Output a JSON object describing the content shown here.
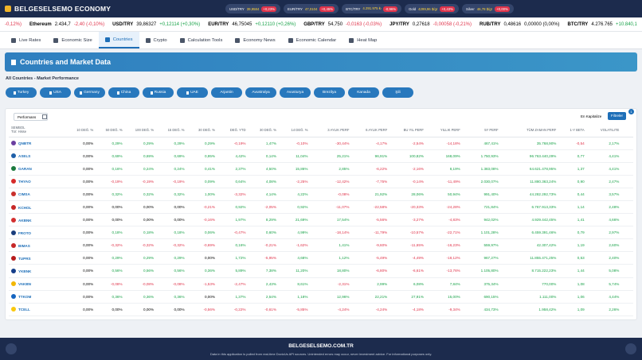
{
  "header": {
    "logo": "BELGESELSEMO ECONOMY",
    "pills": [
      {
        "name": "USD/TRY",
        "value": "39,9584",
        "change": "+0,23%"
      },
      {
        "name": "EUR/TRY",
        "value": "47,0104",
        "change": "+0,45%"
      },
      {
        "name": "BTC/TRY",
        "value": "4.291.975 ₺",
        "change": "-0,96%"
      },
      {
        "name": "Gold",
        "value": "4299,96 $/gr",
        "change": "+0,43%"
      },
      {
        "name": "Silver",
        "value": "46,78 $/gr",
        "change": "+0,00%"
      }
    ]
  },
  "ticker": [
    {
      "change": "-0,12%)"
    },
    {
      "name": "Ethereum",
      "value": "2.434,7",
      "change": "-2,40 (-0,10%)"
    },
    {
      "name": "USD/TRY",
      "value": "39,86327",
      "change": "+0,12114 (+0,30%)"
    },
    {
      "name": "EUR/TRY",
      "value": "46,75045",
      "change": "+0,12110 (+0,26%)"
    },
    {
      "name": "GBP/TRY",
      "value": "54,750",
      "change": "-0,0163 (-0,03%)"
    },
    {
      "name": "JPY/TRY",
      "value": "0,27618",
      "change": "-0,00058 (-0,21%)"
    },
    {
      "name": "RUB/TRY",
      "value": "0,48616",
      "change": "0,00000 (0,00%)"
    },
    {
      "name": "BTC/TRY",
      "value": "4.276.765",
      "change": "+10.840,1"
    }
  ],
  "nav": [
    "Live Rates",
    "Economic Size",
    "Countries",
    "Crypto",
    "Calculation Tools",
    "Economy News",
    "Economic Calendar",
    "Heat Map"
  ],
  "banner_title": "Countries and Market Data",
  "section_title": "All Countries - Market Performance",
  "countries": [
    "Turkey",
    "USA",
    "Germany",
    "China",
    "Russia",
    "UAE",
    "Arjantin",
    "Avustralya",
    "Avusturya",
    "Brezilya",
    "Kanada",
    "Şili"
  ],
  "toolbar": {
    "performance": "Performans",
    "sort": "En Kapitalize",
    "filters": "Filtreler",
    "badge": "1"
  },
  "table": {
    "symbol_header": "SEMBOL",
    "symbol_sub": "Tür: Hisse",
    "columns": [
      "10 DEĞ. %",
      "50 DEĞ. %",
      "100 DEĞ. %",
      "15 DEĞ. %",
      "30 DEĞ. %",
      "DEĞ. YTD",
      "30 DEĞ. %",
      "14 DEĞ. %",
      "3 AYLIK PERF",
      "6 AYLIK PERF",
      "BU YIL PERF",
      "YILLIK PERF",
      "5Y PERF",
      "TÜM ZAMAN PERF",
      "1-Y BETA",
      "VOLATILITE"
    ],
    "rows": [
      {
        "symbol": "QNBTR",
        "values": [
          "0,00%",
          "0,29%",
          "0,29%",
          "0,29%",
          "0,29%",
          "-0,19%",
          "1,47%",
          "-0,10%",
          "-30,44%",
          "-4,17%",
          "-2,54%",
          "-14,18%",
          "467,41%",
          "35.768,90%",
          "-0,54",
          "2,17%"
        ]
      },
      {
        "symbol": "ASELS",
        "values": [
          "0,00%",
          "0,69%",
          "0,69%",
          "0,69%",
          "0,95%",
          "4,42%",
          "0,14%",
          "11,04%",
          "25,21%",
          "96,91%",
          "100,82%",
          "168,09%",
          "1.750,93%",
          "96.763.440,29%",
          "0,77",
          "4,41%"
        ]
      },
      {
        "symbol": "GARAN",
        "values": [
          "0,00%",
          "0,16%",
          "0,24%",
          "0,24%",
          "0,41%",
          "2,37%",
          "4,50%",
          "15,86%",
          "2,85%",
          "-6,22%",
          "-2,16%",
          "8,19%",
          "1.383,08%",
          "64.621.478,95%",
          "1,37",
          "4,41%"
        ]
      },
      {
        "symbol": "THYAO",
        "values": [
          "0,00%",
          "-0,19%",
          "-0,19%",
          "-0,19%",
          "0,09%",
          "0,64%",
          "4,08%",
          "-2,25%",
          "-12,42%",
          "-7,75%",
          "-0,14%",
          "-11,49%",
          "2.030,07%",
          "11.880.363,24%",
          "0,90",
          "2,47%"
        ]
      },
      {
        "symbol": "CIMSA",
        "values": [
          "0,00%",
          "0,32%",
          "0,32%",
          "0,32%",
          "1,00%",
          "-3,32%",
          "4,14%",
          "4,22%",
          "-0,08%",
          "21,92%",
          "28,06%",
          "50,94%",
          "991,40%",
          "44.282.292,73%",
          "0,44",
          "3,57%"
        ]
      },
      {
        "symbol": "KCHOL",
        "values": [
          "0,00%",
          "0,00%",
          "0,00%",
          "0,00%",
          "-0,21%",
          "0,92%",
          "-2,05%",
          "0,92%",
          "-11,07%",
          "-22,58%",
          "-20,33%",
          "-24,28%",
          "721,84%",
          "6.767.913,33%",
          "1,14",
          "2,48%"
        ]
      },
      {
        "symbol": "AKBNK",
        "values": [
          "0,00%",
          "0,00%",
          "0,00%",
          "0,00%",
          "-0,16%",
          "1,97%",
          "8,29%",
          "21,69%",
          "17,54%",
          "-5,56%",
          "-3,27%",
          "-4,83%",
          "942,02%",
          "4.929.442,45%",
          "1,41",
          "4,66%"
        ]
      },
      {
        "symbol": "FROTO",
        "values": [
          "0,00%",
          "0,18%",
          "0,18%",
          "0,18%",
          "0,06%",
          "-0,47%",
          "0,60%",
          "4,99%",
          "-18,14%",
          "-11,79%",
          "-10,57%",
          "-22,71%",
          "1.101,28%",
          "6.459.391,46%",
          "0,79",
          "2,97%"
        ]
      },
      {
        "symbol": "BIMAS",
        "values": [
          "0,00%",
          "-0,32%",
          "-0,32%",
          "-0,32%",
          "-0,69%",
          "0,16%",
          "-0,21%",
          "-1,62%",
          "1,41%",
          "-9,60%",
          "-11,65%",
          "-16,23%",
          "559,97%",
          "42.307,42%",
          "1,19",
          "2,60%"
        ]
      },
      {
        "symbol": "TUPRS",
        "values": [
          "0,00%",
          "0,29%",
          "0,29%",
          "0,29%",
          "0,00%",
          "1,72%",
          "-5,95%",
          "4,68%",
          "1,12%",
          "-5,49%",
          "-4,49%",
          "-18,12%",
          "967,27%",
          "11.855.471,25%",
          "0,53",
          "2,40%"
        ]
      },
      {
        "symbol": "YKBNK",
        "values": [
          "0,00%",
          "0,56%",
          "0,56%",
          "0,56%",
          "0,36%",
          "5,89%",
          "7,38%",
          "11,20%",
          "18,80%",
          "-6,80%",
          "-6,61%",
          "-13,76%",
          "1.105,80%",
          "8.715.222,23%",
          "1,44",
          "5,08%"
        ]
      },
      {
        "symbol": "VAKBN",
        "values": [
          "0,00%",
          "-0,08%",
          "-0,08%",
          "-0,08%",
          "-1,53%",
          "-2,47%",
          "2,43%",
          "8,61%",
          "-2,31%",
          "2,99%",
          "6,08%",
          "7,84%",
          "375,34%",
          "770,00%",
          "1,08",
          "5,74%"
        ]
      },
      {
        "symbol": "TTKOM",
        "values": [
          "0,00%",
          "0,36%",
          "0,36%",
          "0,36%",
          "0,00%",
          "1,37%",
          "2,54%",
          "1,18%",
          "12,96%",
          "22,21%",
          "27,91%",
          "15,00%",
          "690,15%",
          "1.111,00%",
          "1,06",
          "4,44%"
        ]
      },
      {
        "symbol": "TCELL",
        "values": [
          "0,00%",
          "0,00%",
          "0,00%",
          "0,00%",
          "-0,56%",
          "-0,22%",
          "-0,61%",
          "-5,85%",
          "-4,24%",
          "-4,24%",
          "-4,18%",
          "-9,34%",
          "434,73%",
          "1.958,42%",
          "1,09",
          "2,26%"
        ]
      }
    ]
  },
  "footer": {
    "site": "BELGESELSEMO.COM.TR",
    "disclaimer": "Data in this application is pulled from real-time DovizUs API sources. Unintended errors may occur, never investment advice. For informational purposes only."
  }
}
